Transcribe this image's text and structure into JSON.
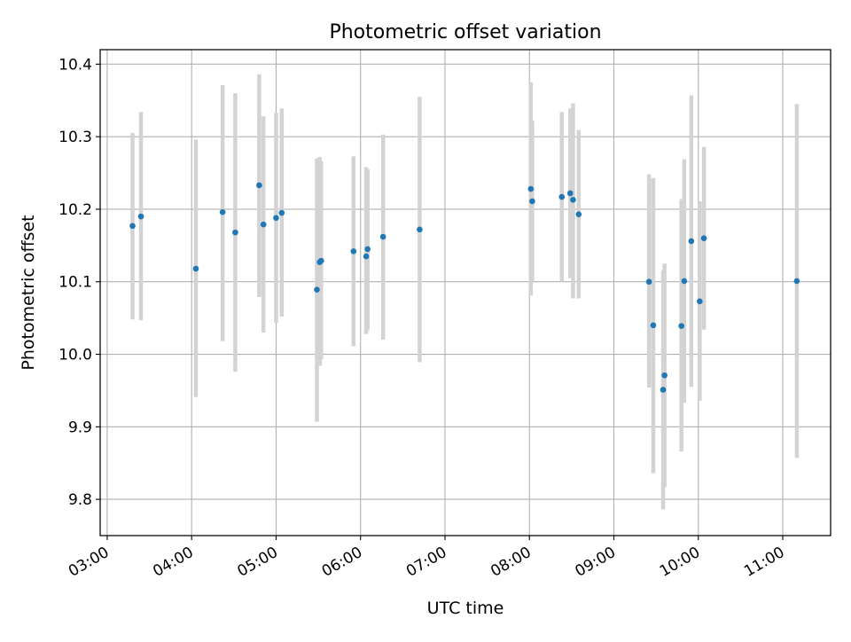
{
  "chart_data": {
    "type": "scatter",
    "title": "Photometric offset variation",
    "xlabel": "UTC time",
    "ylabel": "Photometric offset",
    "xlim": [
      "02:55",
      "11:34"
    ],
    "ylim": [
      9.75,
      10.42
    ],
    "x_ticks": [
      "03:00",
      "04:00",
      "05:00",
      "06:00",
      "07:00",
      "08:00",
      "09:00",
      "10:00",
      "11:00"
    ],
    "y_ticks": [
      "9.8",
      "9.9",
      "10.0",
      "10.1",
      "10.2",
      "10.3",
      "10.4"
    ],
    "grid": true,
    "marker_color": "#1f77b4",
    "errorbar_color": "#d3d3d3",
    "points": [
      {
        "time": "03:18",
        "value": 10.177,
        "err_low": 10.048,
        "err_high": 10.305
      },
      {
        "time": "03:24",
        "value": 10.19,
        "err_low": 10.047,
        "err_high": 10.334
      },
      {
        "time": "04:03",
        "value": 10.118,
        "err_low": 9.941,
        "err_high": 10.296
      },
      {
        "time": "04:22",
        "value": 10.196,
        "err_low": 10.018,
        "err_high": 10.371
      },
      {
        "time": "04:31",
        "value": 10.168,
        "err_low": 9.976,
        "err_high": 10.36
      },
      {
        "time": "04:48",
        "value": 10.233,
        "err_low": 10.079,
        "err_high": 10.386
      },
      {
        "time": "04:51",
        "value": 10.179,
        "err_low": 10.03,
        "err_high": 10.328
      },
      {
        "time": "05:00",
        "value": 10.188,
        "err_low": 10.043,
        "err_high": 10.333
      },
      {
        "time": "05:04",
        "value": 10.195,
        "err_low": 10.052,
        "err_high": 10.339
      },
      {
        "time": "05:29",
        "value": 10.089,
        "err_low": 9.907,
        "err_high": 10.27
      },
      {
        "time": "05:31",
        "value": 10.127,
        "err_low": 9.984,
        "err_high": 10.272
      },
      {
        "time": "05:32",
        "value": 10.129,
        "err_low": 9.993,
        "err_high": 10.266
      },
      {
        "time": "05:55",
        "value": 10.142,
        "err_low": 10.011,
        "err_high": 10.273
      },
      {
        "time": "06:04",
        "value": 10.135,
        "err_low": 10.028,
        "err_high": 10.258
      },
      {
        "time": "06:05",
        "value": 10.145,
        "err_low": 10.033,
        "err_high": 10.255
      },
      {
        "time": "06:16",
        "value": 10.162,
        "err_low": 10.02,
        "err_high": 10.303
      },
      {
        "time": "06:42",
        "value": 10.172,
        "err_low": 9.989,
        "err_high": 10.355
      },
      {
        "time": "08:01",
        "value": 10.228,
        "err_low": 10.081,
        "err_high": 10.375
      },
      {
        "time": "08:02",
        "value": 10.211,
        "err_low": 10.101,
        "err_high": 10.322
      },
      {
        "time": "08:23",
        "value": 10.217,
        "err_low": 10.1,
        "err_high": 10.334
      },
      {
        "time": "08:29",
        "value": 10.222,
        "err_low": 10.105,
        "err_high": 10.339
      },
      {
        "time": "08:31",
        "value": 10.213,
        "err_low": 10.077,
        "err_high": 10.346
      },
      {
        "time": "08:35",
        "value": 10.193,
        "err_low": 10.077,
        "err_high": 10.309
      },
      {
        "time": "09:25",
        "value": 10.1,
        "err_low": 9.954,
        "err_high": 10.248
      },
      {
        "time": "09:28",
        "value": 10.04,
        "err_low": 9.836,
        "err_high": 10.243
      },
      {
        "time": "09:35",
        "value": 9.951,
        "err_low": 9.786,
        "err_high": 10.116
      },
      {
        "time": "09:36",
        "value": 9.971,
        "err_low": 9.817,
        "err_high": 10.125
      },
      {
        "time": "09:48",
        "value": 10.039,
        "err_low": 9.866,
        "err_high": 10.214
      },
      {
        "time": "09:50",
        "value": 10.101,
        "err_low": 9.933,
        "err_high": 10.269
      },
      {
        "time": "09:55",
        "value": 10.156,
        "err_low": 9.955,
        "err_high": 10.357
      },
      {
        "time": "10:01",
        "value": 10.073,
        "err_low": 9.936,
        "err_high": 10.211
      },
      {
        "time": "10:04",
        "value": 10.16,
        "err_low": 10.034,
        "err_high": 10.286
      },
      {
        "time": "11:10",
        "value": 10.101,
        "err_low": 9.857,
        "err_high": 10.345
      }
    ]
  }
}
